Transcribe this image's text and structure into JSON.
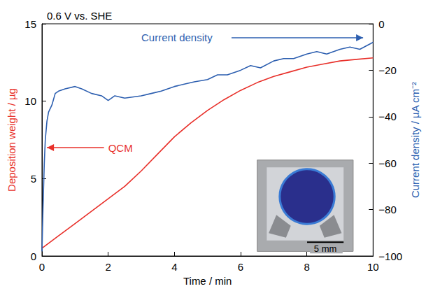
{
  "chart_data": {
    "type": "line",
    "title": "0.6 V vs. SHE",
    "x_label": "Time / min",
    "y_label": "Deposition weight / µg",
    "y2_label": "Current density / µA cm⁻²",
    "xlim": [
      0,
      10
    ],
    "xticks": [
      0,
      2,
      4,
      6,
      8,
      10
    ],
    "ylim": [
      0,
      15
    ],
    "yticks": [
      0,
      5,
      10,
      15
    ],
    "y2lim": [
      -100,
      0
    ],
    "y2ticks": [
      {
        "value": -100,
        "label": "−100"
      },
      {
        "value": -80,
        "label": "−80"
      },
      {
        "value": -60,
        "label": "−60"
      },
      {
        "value": -40,
        "label": "−40"
      },
      {
        "value": -20,
        "label": "−20"
      },
      0
    ],
    "grid": false,
    "series": [
      {
        "name": "QCM",
        "color": "#e8302a",
        "line_style": "solid",
        "x": [
          0,
          0.5,
          1,
          1.5,
          2,
          2.5,
          3,
          3.5,
          4,
          4.5,
          5,
          5.5,
          6,
          6.5,
          7,
          7.5,
          8,
          8.5,
          9,
          9.5,
          10
        ],
        "values": [
          0.5,
          1.3,
          2.1,
          2.9,
          3.7,
          4.5,
          5.5,
          6.6,
          7.7,
          8.6,
          9.4,
          10.1,
          10.7,
          11.2,
          11.6,
          11.9,
          12.2,
          12.4,
          12.6,
          12.7,
          12.8
        ]
      },
      {
        "name": "Current density",
        "color": "#2d5fb0",
        "line_style": "solid",
        "axis": "y2",
        "x": [
          0,
          0.03,
          0.07,
          0.1,
          0.15,
          0.2,
          0.3,
          0.4,
          0.5,
          0.7,
          1.0,
          1.2,
          1.5,
          1.8,
          2.0,
          2.2,
          2.5,
          3.0,
          3.3,
          3.6,
          4.0,
          4.3,
          4.6,
          5.0,
          5.3,
          5.6,
          6.0,
          6.3,
          6.6,
          7.0,
          7.3,
          7.6,
          8.0,
          8.3,
          8.6,
          9.0,
          9.3,
          9.6,
          10.0
        ],
        "values": [
          -98,
          -80,
          -60,
          -50,
          -42,
          -38,
          -35,
          -30,
          -29,
          -28,
          -27,
          -28,
          -30,
          -31,
          -33,
          -31,
          -32,
          -31,
          -30,
          -29,
          -27,
          -26,
          -25,
          -24,
          -22,
          -22,
          -20,
          -18,
          -19,
          -16,
          -15,
          -15,
          -13,
          -12,
          -13,
          -11,
          -10,
          -11,
          -8
        ]
      }
    ],
    "annotations": [
      "5 mm"
    ]
  }
}
